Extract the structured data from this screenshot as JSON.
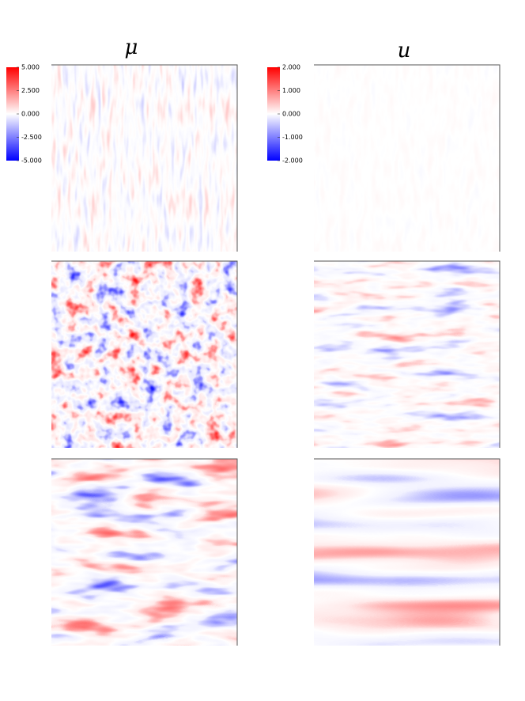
{
  "columns": [
    {
      "title": "μ",
      "colorbar": {
        "ticks": [
          {
            "value": 5,
            "label": "5.000"
          },
          {
            "value": 2.5,
            "label": "2.500"
          },
          {
            "value": 0,
            "label": "0.000"
          },
          {
            "value": -2.5,
            "label": "-2.500"
          },
          {
            "value": -5,
            "label": "-5.000"
          }
        ]
      }
    },
    {
      "title": "u",
      "colorbar": {
        "ticks": [
          {
            "value": 2,
            "label": "2.000"
          },
          {
            "value": 1,
            "label": "1.000"
          },
          {
            "value": 0,
            "label": "0.000"
          },
          {
            "value": -1,
            "label": "-1.000"
          },
          {
            "value": -2,
            "label": "-2.000"
          }
        ]
      }
    }
  ]
}
